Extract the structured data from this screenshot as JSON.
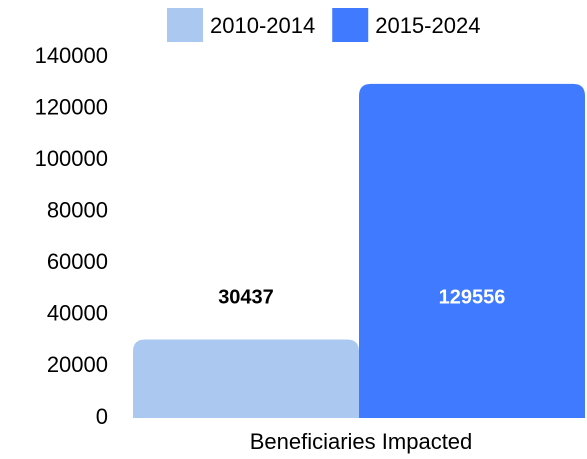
{
  "chart_data": {
    "type": "bar",
    "categories": [
      "Beneficiaries Impacted"
    ],
    "series": [
      {
        "name": "2010-2014",
        "color": "#abc9f0",
        "values": [
          30437
        ]
      },
      {
        "name": "2015-2024",
        "color": "#407bff",
        "values": [
          129556
        ]
      }
    ],
    "ylim": [
      0,
      140000
    ],
    "yticks": [
      0,
      20000,
      40000,
      60000,
      80000,
      100000,
      120000,
      140000
    ],
    "legend": "top",
    "grid": false
  }
}
